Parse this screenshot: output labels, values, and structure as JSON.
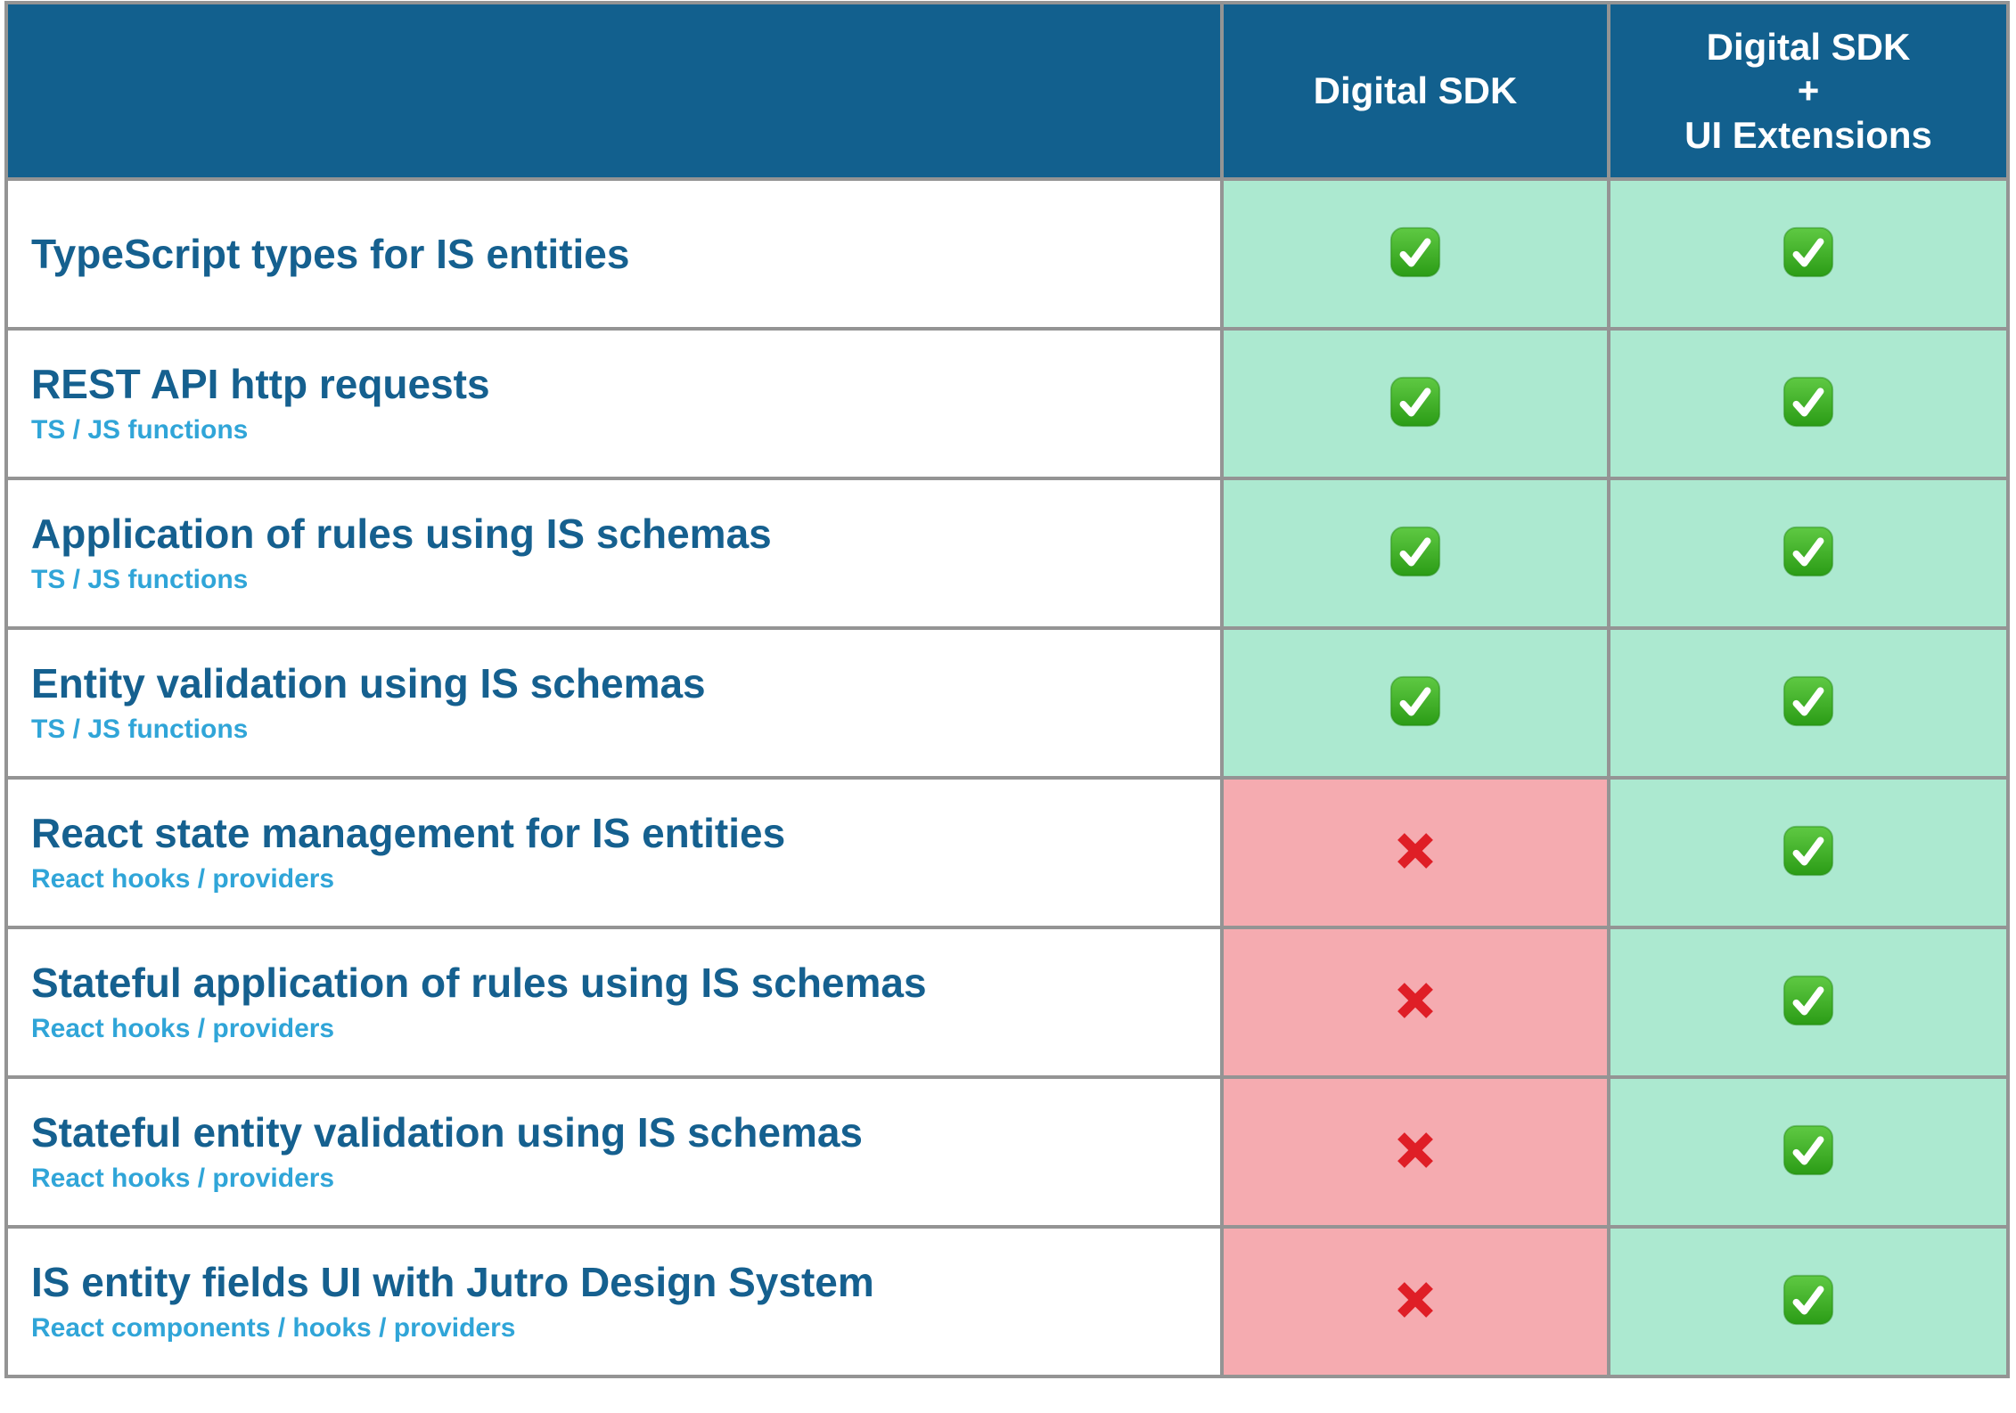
{
  "header": {
    "feature_col_label": "",
    "col_digital_sdk": "Digital SDK",
    "col_digital_sdk_ui": "Digital SDK\n+\nUI Extensions"
  },
  "rows": [
    {
      "title": "TypeScript types for IS entities",
      "subtitle": "",
      "digital_sdk": "check",
      "digital_sdk_ui": "check"
    },
    {
      "title": "REST API http requests",
      "subtitle": "TS / JS functions",
      "digital_sdk": "check",
      "digital_sdk_ui": "check"
    },
    {
      "title": "Application of rules using IS schemas",
      "subtitle": "TS / JS functions",
      "digital_sdk": "check",
      "digital_sdk_ui": "check"
    },
    {
      "title": "Entity validation using IS schemas",
      "subtitle": "TS / JS functions",
      "digital_sdk": "check",
      "digital_sdk_ui": "check"
    },
    {
      "title": "React state management for IS entities",
      "subtitle": "React hooks / providers",
      "digital_sdk": "cross",
      "digital_sdk_ui": "check"
    },
    {
      "title": "Stateful application of rules using IS schemas",
      "subtitle": "React hooks / providers",
      "digital_sdk": "cross",
      "digital_sdk_ui": "check"
    },
    {
      "title": "Stateful entity validation using IS schemas",
      "subtitle": "React hooks / providers",
      "digital_sdk": "cross",
      "digital_sdk_ui": "check"
    },
    {
      "title": "IS entity fields UI with Jutro Design System",
      "subtitle": "React components / hooks / providers",
      "digital_sdk": "cross",
      "digital_sdk_ui": "check"
    }
  ],
  "colors": {
    "header_bg": "#12608E",
    "title_text": "#15608F",
    "subtitle_text": "#30A5D8",
    "available_bg": "#ACE9D0",
    "unavailable_bg": "#F5ABB0",
    "check_green": "#3DB227",
    "cross_red": "#DF1E26",
    "grid_border": "#949494"
  }
}
